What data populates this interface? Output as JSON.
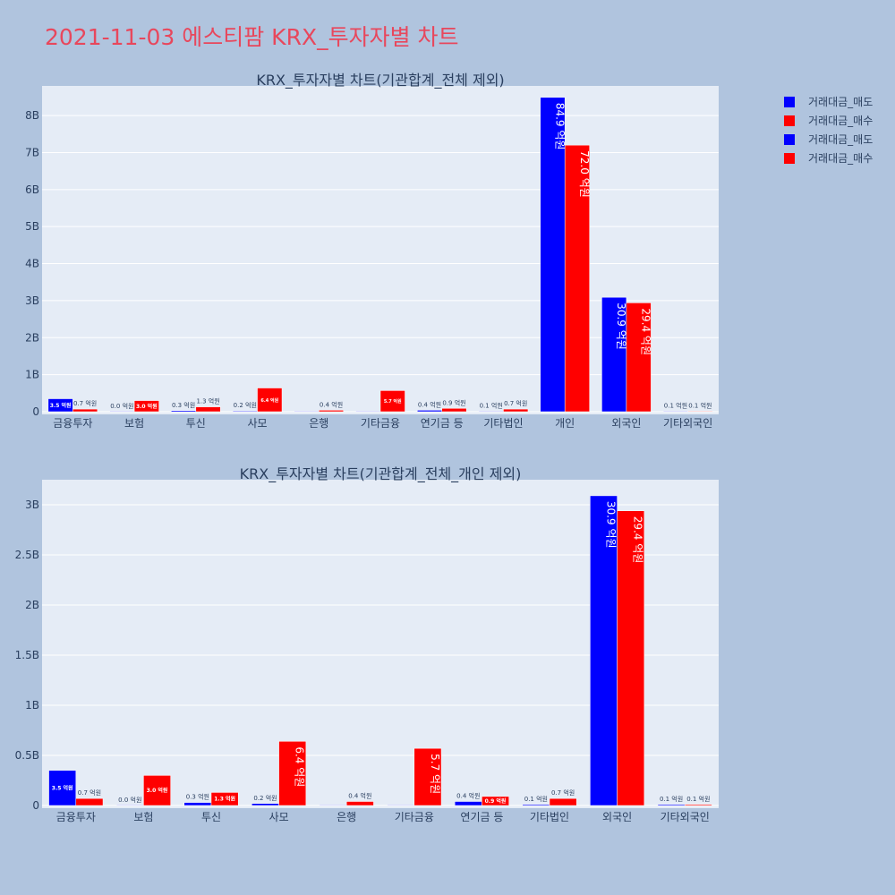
{
  "page_title": "2021-11-03 에스티팜 KRX_투자자별 차트",
  "colors": {
    "background": "#b0c4de",
    "plot_bg": "#e5ecf6",
    "sell": "#0000ff",
    "buy": "#ff0000",
    "title": "#e8475c"
  },
  "legend": [
    "거래대금_매도",
    "거래대금_매수",
    "거래대금_매도",
    "거래대금_매수"
  ],
  "chart_data": [
    {
      "type": "bar",
      "title": "KRX_투자자별 차트(기관합계_전체 제외)",
      "categories": [
        "금융투자",
        "보험",
        "투신",
        "사모",
        "은행",
        "기타금융",
        "연기금 등",
        "기타법인",
        "개인",
        "외국인",
        "기타외국인"
      ],
      "ylim": [
        0,
        8.8
      ],
      "yticks": [
        0,
        1,
        2,
        3,
        4,
        5,
        6,
        7,
        8
      ],
      "ytick_labels": [
        "0",
        "1B",
        "2B",
        "3B",
        "4B",
        "5B",
        "6B",
        "7B",
        "8B"
      ],
      "series": [
        {
          "name": "거래대금_매도",
          "values": [
            0.35,
            0.0,
            0.03,
            0.02,
            0.0,
            0.0,
            0.04,
            0.01,
            8.49,
            3.09,
            0.01
          ],
          "labels": [
            "3.5 억원",
            "0.0 억원",
            "0.3 억원",
            "0.2 억원",
            "",
            "",
            "0.4 억원",
            "0.1 억원",
            "84.9 억원",
            "30.9 억원",
            "0.1 억원"
          ]
        },
        {
          "name": "거래대금_매수",
          "values": [
            0.07,
            0.3,
            0.13,
            0.64,
            0.04,
            0.57,
            0.09,
            0.07,
            7.2,
            2.94,
            0.01
          ],
          "labels": [
            "0.7 억원",
            "3.0 억원",
            "1.3 억원",
            "6.4 억원",
            "0.4 억원",
            "5.7 억원",
            "0.9 억원",
            "0.7 억원",
            "72.0 억원",
            "29.4 억원",
            "0.1 억원"
          ]
        }
      ]
    },
    {
      "type": "bar",
      "title": "KRX_투자자별 차트(기관합계_전체_개인 제외)",
      "categories": [
        "금융투자",
        "보험",
        "투신",
        "사모",
        "은행",
        "기타금융",
        "연기금 등",
        "기타법인",
        "외국인",
        "기타외국인"
      ],
      "ylim": [
        0,
        3.25
      ],
      "yticks": [
        0,
        0.5,
        1,
        1.5,
        2,
        2.5,
        3
      ],
      "ytick_labels": [
        "0",
        "0.5B",
        "1B",
        "1.5B",
        "2B",
        "2.5B",
        "3B"
      ],
      "series": [
        {
          "name": "거래대금_매도",
          "values": [
            0.35,
            0.0,
            0.03,
            0.02,
            0.0,
            0.0,
            0.04,
            0.01,
            3.09,
            0.01
          ],
          "labels": [
            "3.5 억원",
            "0.0 억원",
            "0.3 억원",
            "0.2 억원",
            "",
            "",
            "0.4 억원",
            "0.1 억원",
            "30.9 억원",
            "0.1 억원"
          ]
        },
        {
          "name": "거래대금_매수",
          "values": [
            0.07,
            0.3,
            0.13,
            0.64,
            0.04,
            0.57,
            0.09,
            0.07,
            2.94,
            0.01
          ],
          "labels": [
            "0.7 억원",
            "3.0 억원",
            "1.3 억원",
            "6.4 억원",
            "0.4 억원",
            "5.7 억원",
            "0.9 억원",
            "0.7 억원",
            "29.4 억원",
            "0.1 억원"
          ]
        }
      ]
    }
  ]
}
